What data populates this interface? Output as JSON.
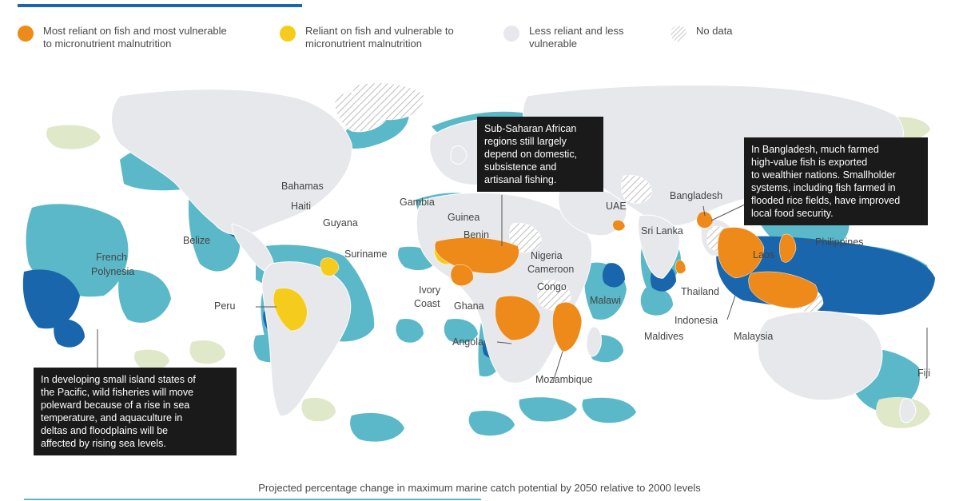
{
  "legend": [
    {
      "label_line1": "Most reliant on fish and most vulnerable",
      "label_line2": "to micronutrient malnutrition",
      "color": "#ee8a1a"
    },
    {
      "label_line1": "Reliant on fish and vulnerable to",
      "label_line2": "micronutrient malnutrition",
      "color": "#f6cc1c"
    },
    {
      "label_line1": "Less reliant and less",
      "label_line2": "vulnerable",
      "color": "#e6e8ec"
    },
    {
      "label_line1": "No data",
      "label_line2": "",
      "color": "#dddddd"
    }
  ],
  "colors": {
    "land": "#e6e8ec",
    "most_reliant": "#ee8a1a",
    "reliant": "#f6cc1c",
    "ocean_light": "#5bb8c8",
    "ocean_dark": "#1966ad",
    "ocean_pale": "#dfe9c9",
    "callout_bg": "#1a1a1a"
  },
  "labels": {
    "french_polynesia_1": "French",
    "french_polynesia_2": "Polynesia",
    "bahamas": "Bahamas",
    "haiti": "Haiti",
    "guyana": "Guyana",
    "belize": "Belize",
    "suriname": "Suriname",
    "peru": "Peru",
    "gambia": "Gambia",
    "guinea": "Guinea",
    "benin": "Benin",
    "nigeria": "Nigeria",
    "cameroon": "Cameroon",
    "congo": "Congo",
    "ivory_coast_1": "Ivory",
    "ivory_coast_2": "Coast",
    "ghana": "Ghana",
    "angola": "Angola",
    "malawi": "Malawi",
    "mozambique": "Mozambique",
    "uae": "UAE",
    "bangladesh": "Bangladesh",
    "sri_lanka": "Sri Lanka",
    "philippines": "Philippines",
    "laos": "Laos",
    "thailand": "Thailand",
    "maldives": "Maldives",
    "indonesia": "Indonesia",
    "malaysia": "Malaysia",
    "fiji": "Fiji"
  },
  "callouts": {
    "africa": [
      "Sub-Saharan African",
      "regions still largely",
      "depend on domestic,",
      "subsistence and",
      "artisanal fishing."
    ],
    "bangladesh": [
      "In Bangladesh, much farmed",
      "high-value fish is exported",
      "to wealthier nations. Smallholder",
      "systems, including fish farmed in",
      "flooded rice fields, have improved",
      "local food security."
    ],
    "pacific": [
      "In developing small island states of",
      "the Pacific, wild fisheries will move",
      "poleward because of a rise in sea",
      "temperature, and aquaculture in",
      "deltas and floodplains will be",
      "affected by rising sea levels."
    ]
  },
  "caption": "Projected percentage change in maximum marine catch potential by 2050 relative to 2000 levels"
}
